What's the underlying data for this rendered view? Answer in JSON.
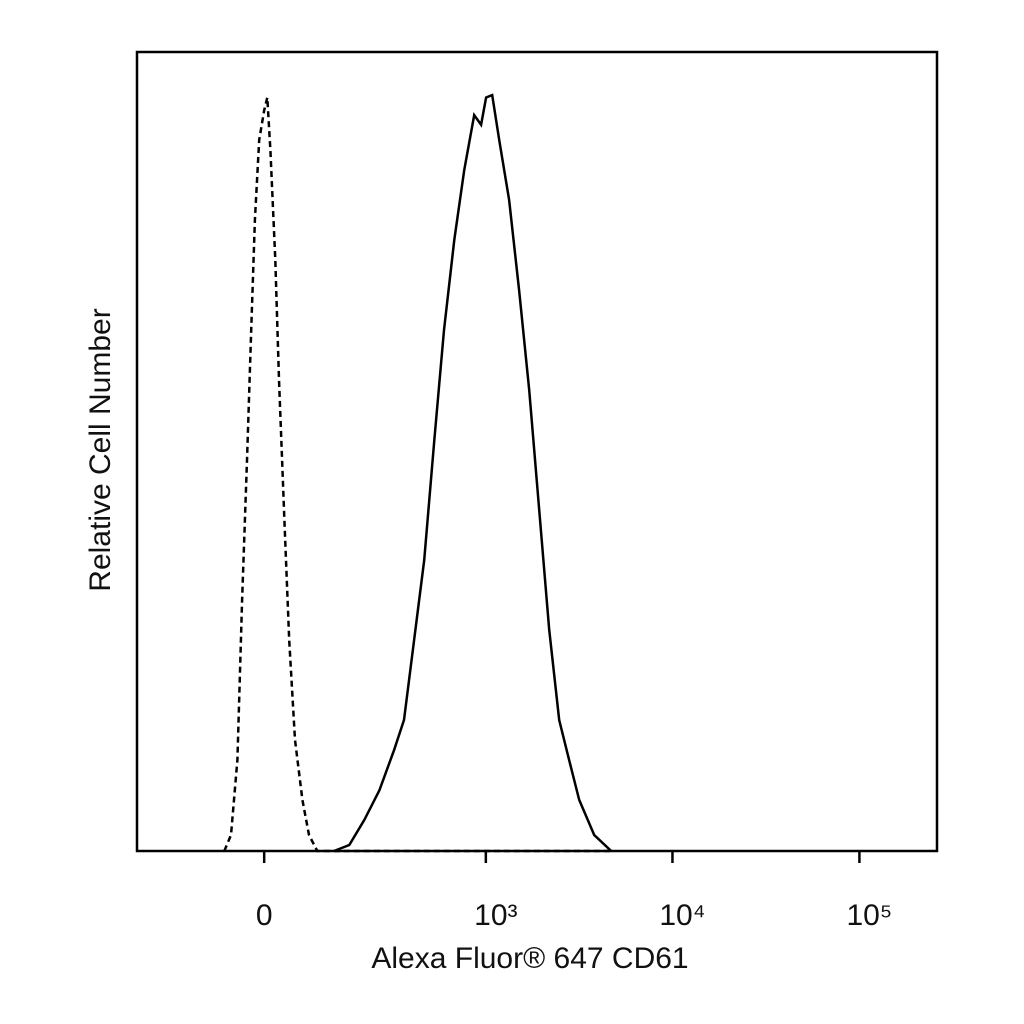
{
  "chart_data": {
    "type": "line",
    "x_label": "Alexa Fluor® 647 CD61",
    "y_label": "Relative Cell Number",
    "xscale": "biexponential",
    "xlim": [
      -300,
      260000
    ],
    "xticks": [
      0,
      {
        "value": 1000,
        "label": "10³"
      },
      {
        "value": 10000,
        "label": "10⁴"
      },
      {
        "value": 100000,
        "label": "10⁵"
      }
    ],
    "ylim": [
      0,
      100
    ],
    "series": [
      {
        "color": "#000000",
        "line_style": "dashed",
        "x": [
          -67,
          -55,
          -44,
          -36,
          -28,
          -21,
          -15,
          -8,
          0,
          5,
          10,
          18,
          24,
          33,
          41,
          51,
          64,
          76,
          92,
          4700
        ],
        "values": [
          0,
          2,
          11.4,
          31.4,
          48.9,
          65.2,
          79,
          89,
          92.7,
          94.3,
          87.7,
          74,
          59,
          41.4,
          26.4,
          13.9,
          6.4,
          2,
          0,
          0
        ]
      },
      {
        "color": "#000000",
        "line_style": "solid",
        "x": [
          127,
          164,
          206,
          255,
          311,
          355,
          405,
          461,
          524,
          593,
          675,
          764,
          865,
          943,
          1003,
          1082,
          1180,
          1335,
          1510,
          1711,
          1935,
          2189,
          2476,
          2800,
          3168,
          3812,
          4703
        ],
        "values": [
          0,
          0.75,
          3.9,
          7.6,
          12.6,
          16.4,
          26.4,
          36.4,
          51.4,
          65.2,
          76.5,
          85.2,
          92.1,
          90.9,
          94.3,
          94.6,
          89,
          81.5,
          70.2,
          57.7,
          42.7,
          27.7,
          16.4,
          11.4,
          6.4,
          2,
          0
        ]
      }
    ]
  }
}
